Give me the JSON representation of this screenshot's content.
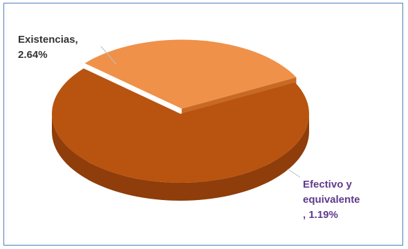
{
  "chart_data": {
    "type": "pie",
    "style": "3d-exploded",
    "slices": [
      {
        "name": "Existencias",
        "value": 2.64,
        "value_label": "2.64%",
        "color": "#b85410",
        "side_color": "#8f3d0a"
      },
      {
        "name": "Efectivo y equivalente",
        "value": 1.19,
        "value_label": "1.19%",
        "color": "#f0914a",
        "side_color": "#c96a24"
      }
    ],
    "data_labels": {
      "existencias": [
        "Existencias,",
        "2.64%"
      ],
      "efectivo": [
        "Efectivo y",
        "equivalente",
        ", 1.19%"
      ]
    },
    "legend": "none",
    "colors": {
      "frame_border": "#4a7ebb",
      "label_dark": "#333333",
      "label_purple": "#5f3a8c",
      "leader_line": "#bfbfbf"
    }
  }
}
